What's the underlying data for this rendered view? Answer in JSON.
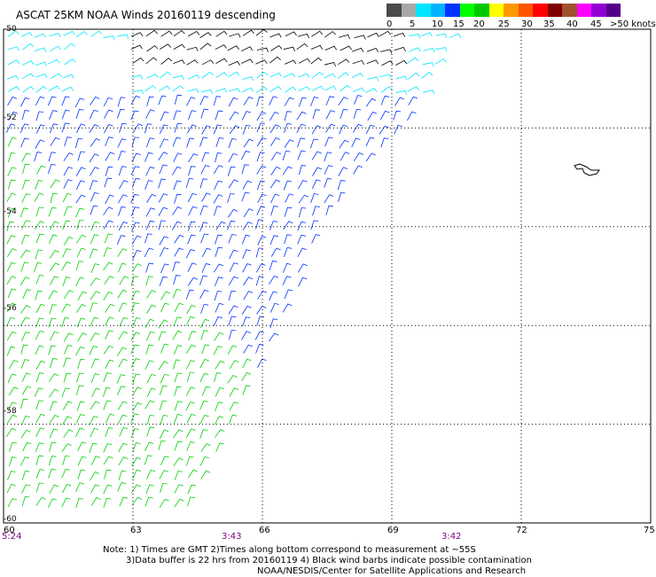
{
  "title": "ASCAT 25KM NOAA Winds 20160119 descending",
  "legend": {
    "ticks": [
      "0",
      "5",
      "10",
      "15",
      "20",
      "25",
      "30",
      "35",
      "40",
      "45",
      ">50 knots"
    ],
    "colors": [
      "#4a4a4a",
      "#a8a8a8",
      "#00e5ff",
      "#00b4ff",
      "#0032ff",
      "#00ff00",
      "#00c800",
      "#ffff00",
      "#ff9900",
      "#ff5500",
      "#ff0000",
      "#800000",
      "#a0522d",
      "#ff00ff",
      "#9400d3",
      "#550088"
    ]
  },
  "x_axis": {
    "ticks": [
      "60",
      "63",
      "66",
      "69",
      "72",
      "75"
    ]
  },
  "y_axis": {
    "ticks": [
      "-50",
      "-52",
      "-54",
      "-56",
      "-58",
      "-60"
    ]
  },
  "times": [
    "5:24",
    "3:43",
    "3:42"
  ],
  "notes": [
    "Note: 1) Times are GMT 2)Times along bottom correspond to measurement at ~55S",
    "3)Data buffer is 22 hrs from 20160119 4) Black wind barbs indicate possible contamination",
    "NOAA/NESDIS/Center for Satellite Applications and Research"
  ],
  "map": {
    "lon_range": [
      60,
      75
    ],
    "lat_range": [
      -60,
      -50
    ],
    "grid": true,
    "swath_edge": [
      [
        70.6,
        -50
      ],
      [
        69.3,
        -52
      ],
      [
        67.3,
        -54
      ],
      [
        66.5,
        -56
      ],
      [
        65.3,
        -58
      ],
      [
        64.1,
        -60
      ]
    ],
    "wind_bands": [
      {
        "label": "contamination",
        "color": "#000000",
        "lat_from": -50,
        "lat_to": -50.9
      },
      {
        "label": "10-15 knots",
        "color": "#00e5ff",
        "lat_from": -50,
        "lat_to": -51.3
      },
      {
        "label": "15-20 knots",
        "color": "#0032ff",
        "lat_from": -51.3,
        "lat_to": -56.5
      },
      {
        "label": "20-25 knots",
        "color": "#00ff00",
        "lat_from": -52.5,
        "lat_to": -60
      }
    ]
  }
}
